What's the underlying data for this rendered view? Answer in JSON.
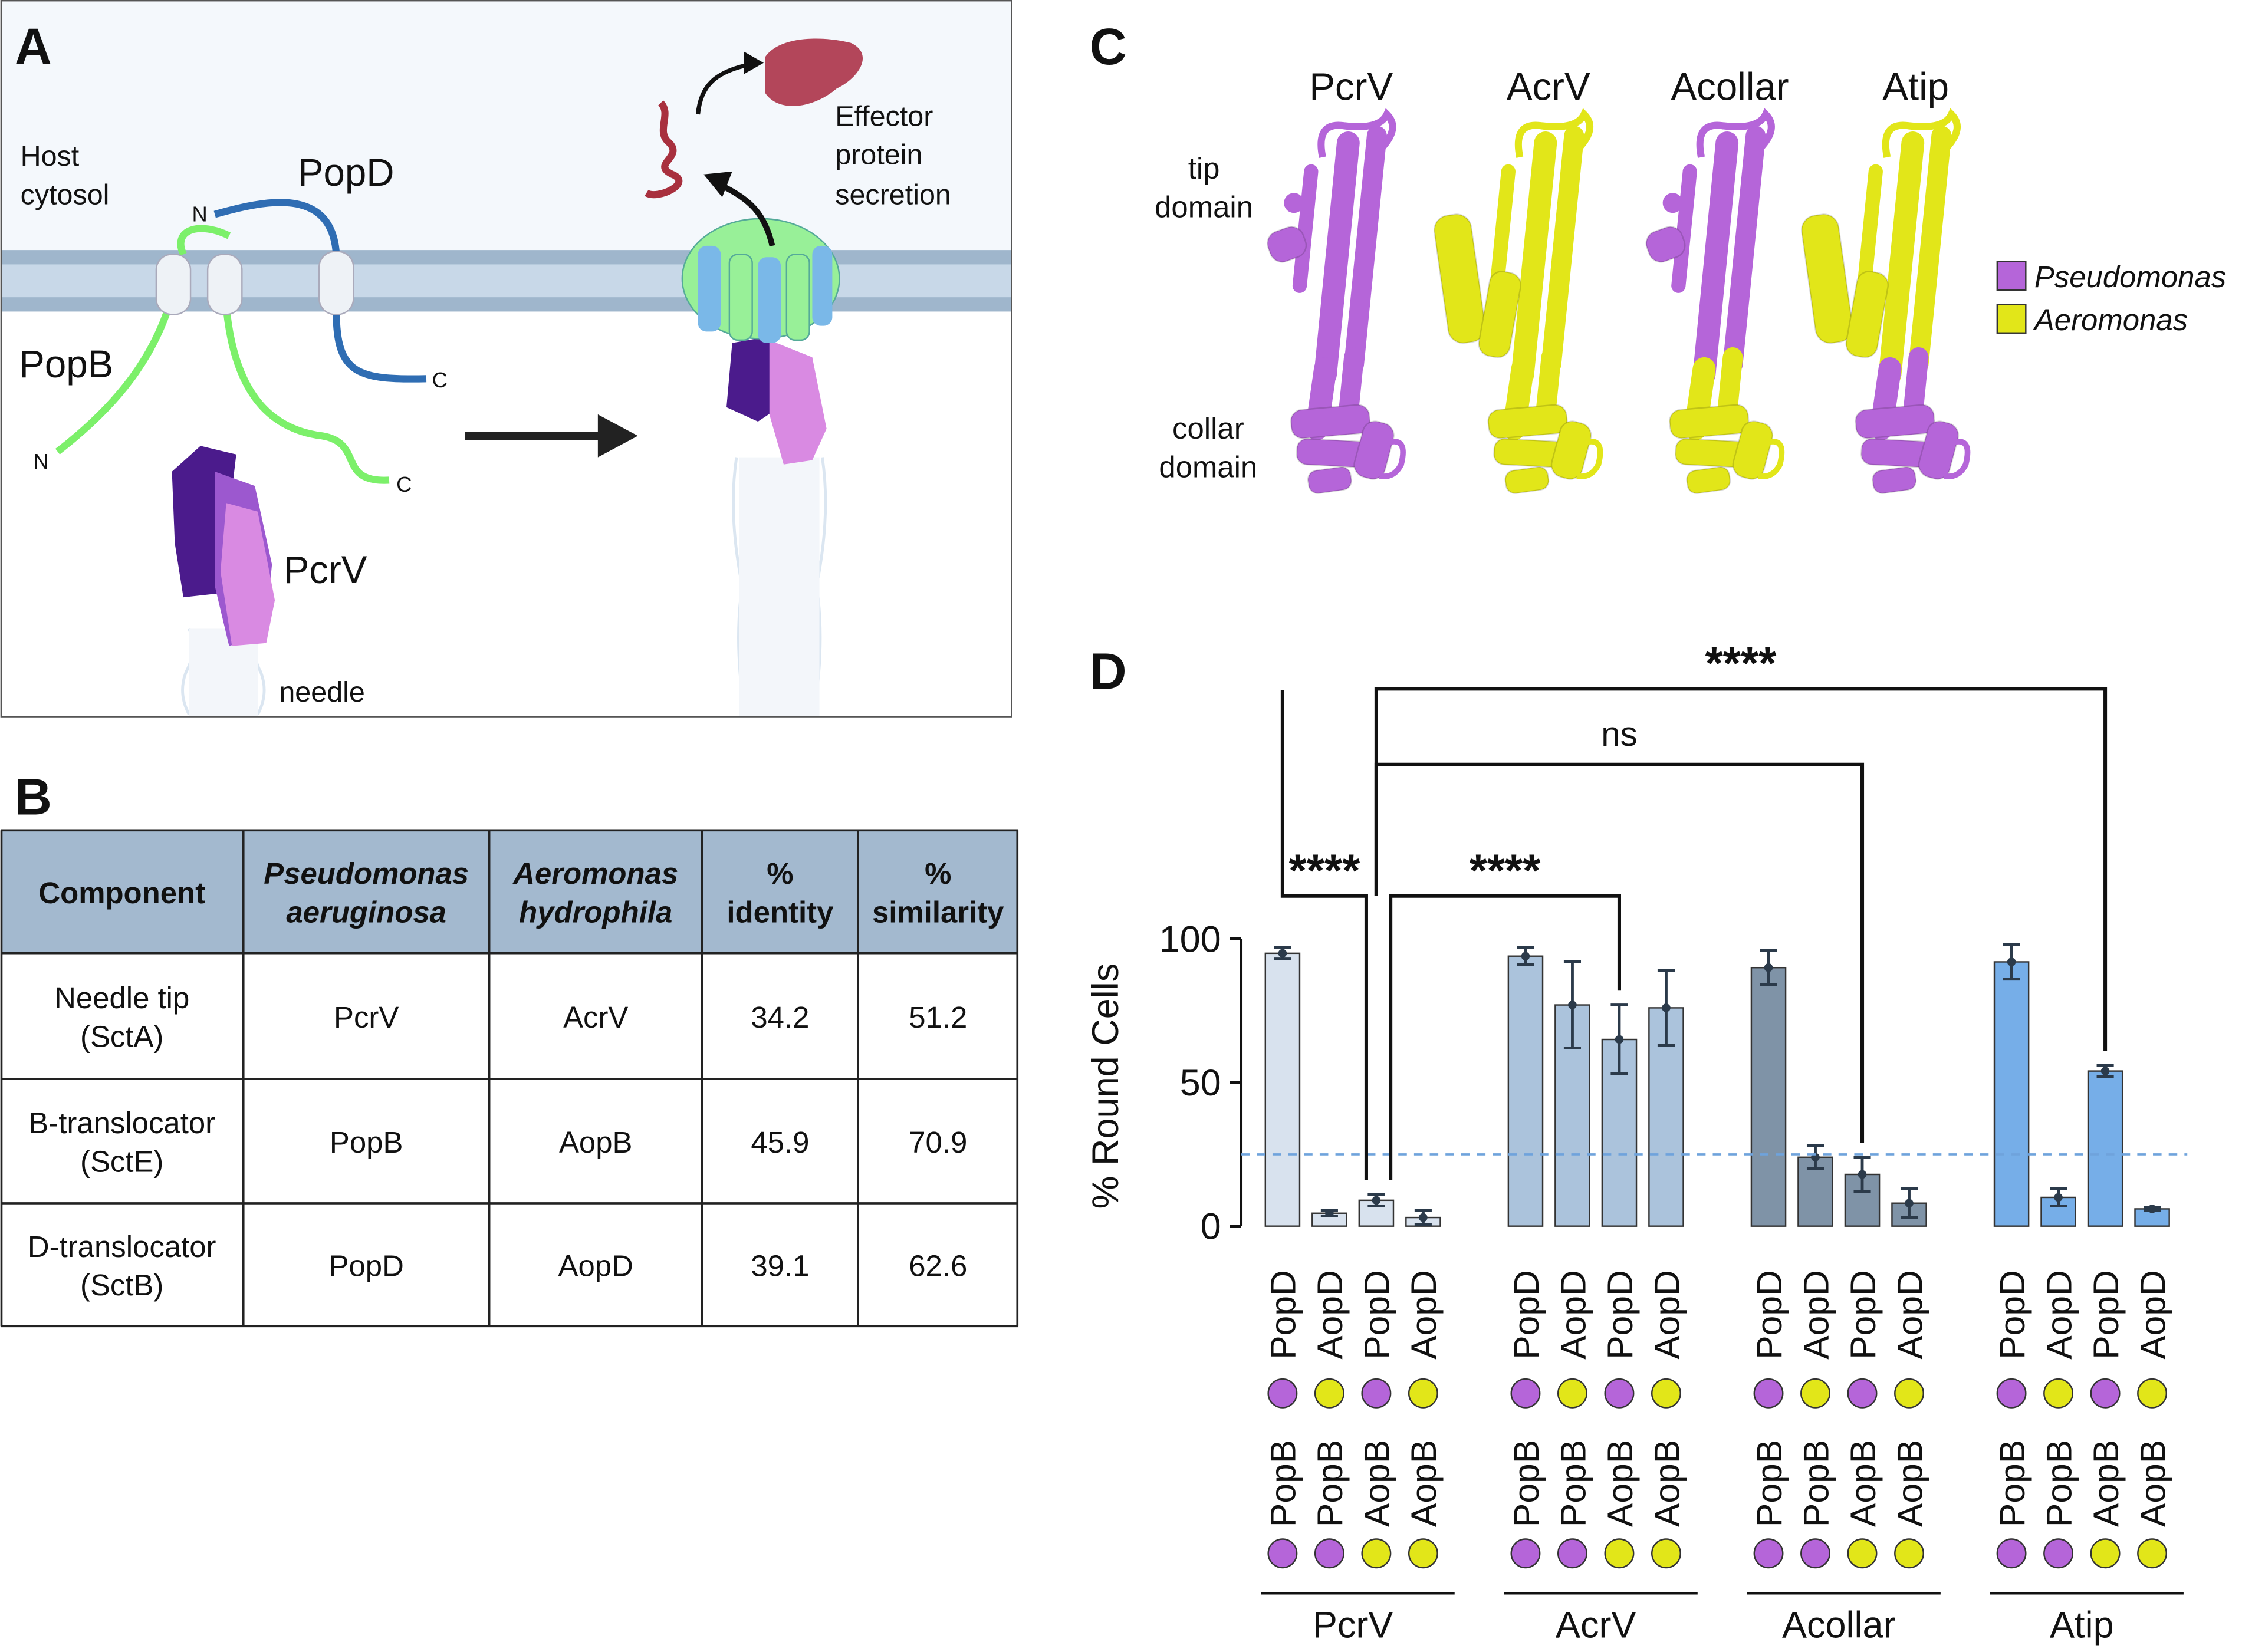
{
  "panel_a": {
    "label": "A",
    "host_cytosol": [
      "Host",
      "cytosol"
    ],
    "popd": "PopD",
    "popb": "PopB",
    "pcrv": "PcrV",
    "needle": "needle",
    "effector": [
      "Effector",
      "protein",
      "secretion"
    ],
    "termini": [
      "N",
      "C",
      "N",
      "C"
    ]
  },
  "panel_b": {
    "label": "B",
    "table": {
      "header": [
        [
          "Component"
        ],
        [
          "Pseudomonas",
          "aeruginosa"
        ],
        [
          "Aeromonas",
          "hydrophila"
        ],
        [
          "%",
          "identity"
        ],
        [
          "%",
          "similarity"
        ]
      ],
      "rows": [
        [
          [
            "Needle tip",
            "(SctA)"
          ],
          "PcrV",
          "AcrV",
          34.2,
          51.2
        ],
        [
          [
            "B-translocator",
            "(SctE)"
          ],
          "PopB",
          "AopB",
          45.9,
          70.9
        ],
        [
          [
            "D-translocator",
            "(SctB)"
          ],
          "PopD",
          "AopD",
          39.1,
          62.6
        ]
      ]
    }
  },
  "panel_c": {
    "label": "C",
    "structures": [
      "PcrV",
      "AcrV",
      "Acollar",
      "Atip"
    ],
    "structure_colors": [
      [
        0,
        0
      ],
      [
        1,
        1
      ],
      [
        0,
        1
      ],
      [
        1,
        0
      ]
    ],
    "tip_domain": [
      "tip",
      "domain"
    ],
    "collar_domain": [
      "collar",
      "domain"
    ],
    "legend": [
      {
        "name": "Pseudomonas",
        "color": "#b565d9"
      },
      {
        "name": "Aeromonas",
        "color": "#e2e619"
      }
    ]
  },
  "chart_data": {
    "type": "bar",
    "label": "D",
    "ylabel": "% Round Cells",
    "ylim": [
      0,
      100
    ],
    "yticks": [
      0,
      50,
      100
    ],
    "categories": [
      "PopD",
      "AopD",
      "PopD",
      "AopD"
    ],
    "categories_row2": [
      "PopB",
      "PopB",
      "AopB",
      "AopB"
    ],
    "category_markers": [
      0,
      1,
      0,
      1
    ],
    "category_row2_markers": [
      0,
      0,
      1,
      1
    ],
    "series": [
      {
        "name": "PcrV",
        "color": "#d8e2ee",
        "values": [
          95,
          4.5,
          9,
          3
        ],
        "errors": [
          2,
          1,
          2,
          2.5
        ]
      },
      {
        "name": "AcrV",
        "color": "#abc3dc",
        "values": [
          94,
          77,
          65,
          76
        ],
        "errors": [
          3,
          15,
          12,
          13
        ]
      },
      {
        "name": "Acollar",
        "color": "#7f93a7",
        "values": [
          90,
          24,
          18,
          8
        ],
        "errors": [
          6,
          4,
          6,
          5
        ]
      },
      {
        "name": "Atip",
        "color": "#76aee8",
        "values": [
          92,
          10,
          54,
          6
        ],
        "errors": [
          6,
          3,
          2,
          0.5
        ]
      }
    ],
    "reference_line": {
      "value": 25,
      "color": "#6fa3dc"
    },
    "comparisons": [
      {
        "bars": [
          0,
          2
        ],
        "label": "****"
      },
      {
        "bars": [
          2,
          6
        ],
        "label": "****"
      },
      {
        "bars": [
          2,
          10
        ],
        "label": "ns"
      },
      {
        "bars": [
          2,
          14
        ],
        "label": "****"
      }
    ]
  }
}
